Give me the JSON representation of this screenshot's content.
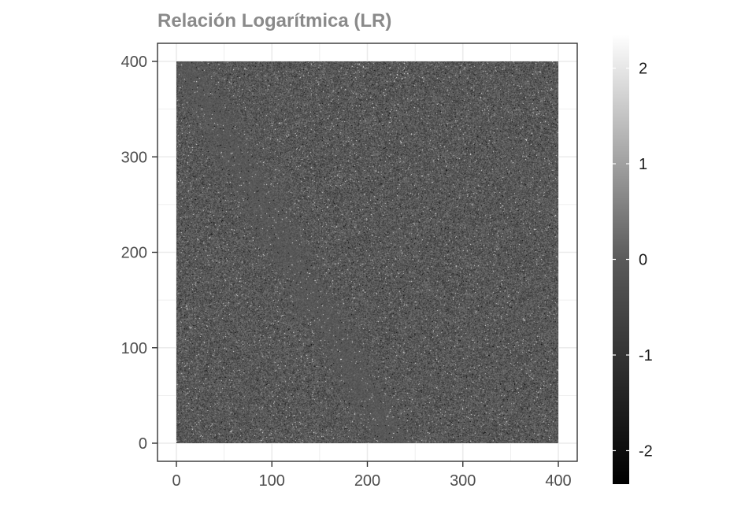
{
  "chart_data": {
    "type": "heatmap",
    "title": "Relación Logarítmica (LR)",
    "xlabel": "",
    "ylabel": "",
    "xlim": [
      0,
      400
    ],
    "ylim": [
      0,
      400
    ],
    "x_ticks": [
      "0",
      "100",
      "200",
      "300",
      "400"
    ],
    "y_ticks": [
      "0",
      "100",
      "200",
      "300",
      "400"
    ],
    "grid": true,
    "colorscale": {
      "name": "grayscale",
      "low_color": "#000000",
      "mid_color": "#5a5a5a",
      "high_color": "#ffffff",
      "range": [
        -2.35,
        2.35
      ],
      "ticks": [
        "2",
        "1",
        "0",
        "-1",
        "-2"
      ],
      "legend_position": "right"
    },
    "values_description_note": null
  },
  "colors": {
    "background": "#ffffff",
    "panel_border": "#333333",
    "grid": "#ebebeb",
    "title": "#8a8a8a",
    "axis_text": "#4d4d4d"
  }
}
